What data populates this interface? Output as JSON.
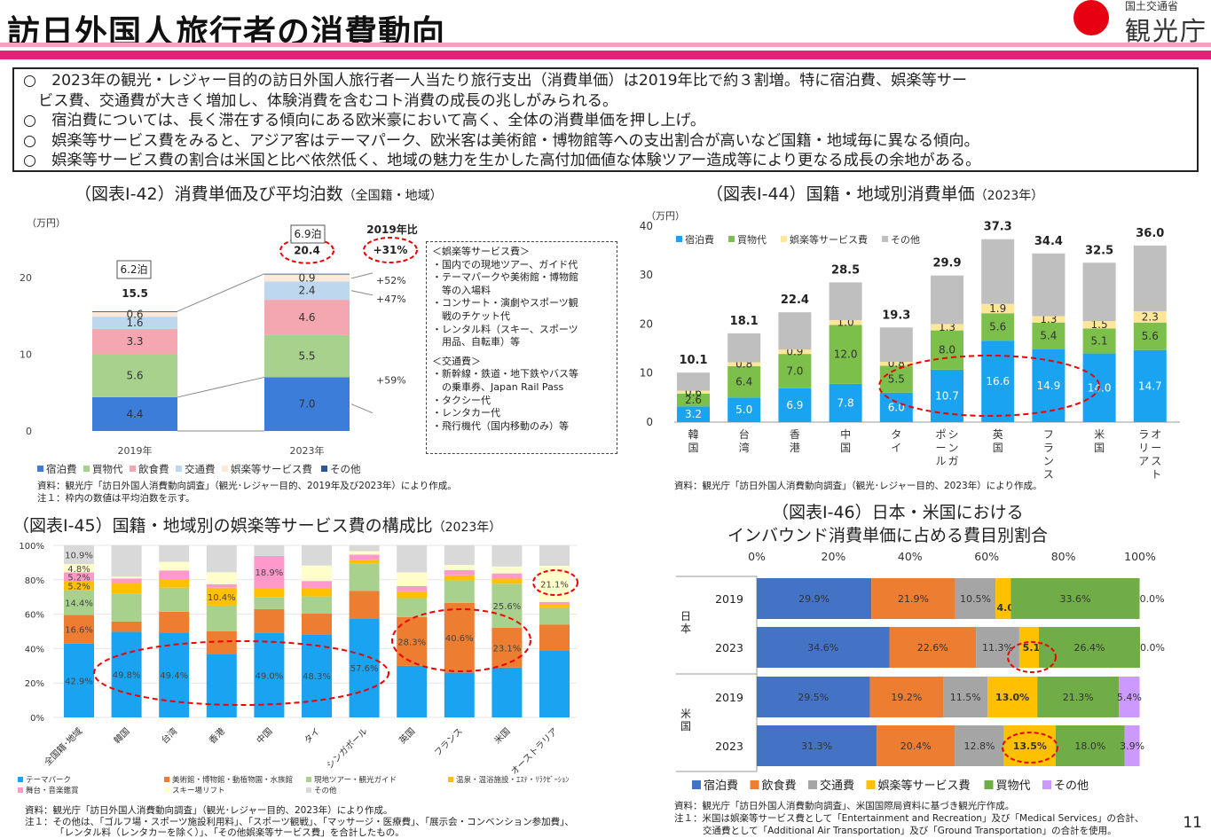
{
  "header": {
    "title": "訪日外国人旅行者の消費動向",
    "ministry": "国土交通省",
    "agency": "観光庁"
  },
  "summary": {
    "line1": "○　2023年の観光・レジャー目的の訪日外国人旅行者一人当たり旅行支出（消費単価）は2019年比で約３割増。特に宿泊費、娯楽等サー",
    "line2": "ビス費、交通費が大きく増加し、体験消費を含むコト消費の成長の兆しがみられる。",
    "line3": "○　宿泊費については、長く滞在する傾向にある欧米豪において高く、全体の消費単価を押し上げ。",
    "line4": "○　娯楽等サービス費をみると、アジア客はテーマパーク、欧米客は美術館・博物館等への支出割合が高いなど国籍・地域毎に異なる傾向。",
    "line5": "○　娯楽等サービス費の割合は米国と比べ依然低く、地域の魅力を生かした高付加価値な体験ツアー造成等により更なる成長の余地がある。"
  },
  "chart42": {
    "title": "（図表Ⅰ-42）消費単価及び平均泊数",
    "title_small": "（全国籍・地域）",
    "unit": "（万円）",
    "stay2019": "6.2泊",
    "stay2023": "6.9泊",
    "compare_label": "2019年比",
    "box_title1": "＜娯楽等サービス費＞",
    "box_l1": "・国内での現地ツアー、ガイド代",
    "box_l2": "・テーマパークや美術館・博物館",
    "box_l3": "　等の入場料",
    "box_l4": "・コンサート・演劇やスポーツ観",
    "box_l5": "　戦のチケット代",
    "box_l6": "・レンタル料（スキー、スポーツ",
    "box_l7": "　用品、自転車）等",
    "box_title2": "＜交通費＞",
    "box_l8": "・新幹線・鉄道・地下鉄やバス等",
    "box_l9": "　の乗車券、Japan Rail Pass",
    "box_l10": "・タクシー代",
    "box_l11": "・レンタカー代",
    "box_l12": "・飛行機代（国内移動のみ）等",
    "note1": "資料：観光庁「訪日外国人消費動向調査」（観光･レジャー目的、2019年及び2023年）により作成。",
    "note2": "注１：枠内の数値は平均泊数を示す。"
  },
  "chart44": {
    "title": "（図表Ⅰ-44）国籍・地域別消費単価",
    "title_small": "（2023年）",
    "unit": "（万円）",
    "note1": "資料：観光庁「訪日外国人消費動向調査」（観光･レジャー目的、2023年）により作成。"
  },
  "chart45": {
    "title": "（図表Ⅰ-45）国籍・地域別の娯楽等サービス費の構成比",
    "title_small": "（2023年）",
    "note1": "資料：観光庁「訪日外国人消費動向調査」（観光･レジャー目的、2023年）により作成。",
    "note2": "注１：その他は、「ゴルフ場・スポーツ施設利用料」、「スポーツ観戦」、「マッサージ・医療費」、「展示会・コンベンション参加費」、",
    "note3": "「レンタル料（レンタカーを除く）」、「その他娯楽等サービス費」を合計したもの。"
  },
  "chart46": {
    "title1": "（図表Ⅰ-46）日本・米国における",
    "title2": "インバウンド消費単価に占める費目別割合",
    "note1": "資料：観光庁「訪日外国人消費動向調査」、米国国際局資料に基づき観光庁作成。",
    "note2": "注１：米国は娯楽等サービス費として「Entertainment and Recreation」及び「Medical Services」の合計、",
    "note3": "交通費として「Additional Air Transportation」及び「Ground Transportation」の合計を使用。"
  },
  "page_number": "11",
  "chart_data": [
    {
      "type": "bar",
      "stacked": true,
      "id": "fig42",
      "categories": [
        "2019年",
        "2023年"
      ],
      "yticks": [
        "0",
        "10",
        "20"
      ],
      "ylim": [
        0,
        24
      ],
      "series": [
        {
          "name": "宿泊費",
          "color": "#3b7dd8",
          "values": [
            4.4,
            7.0
          ]
        },
        {
          "name": "買物代",
          "color": "#a9d18e",
          "values": [
            5.6,
            5.5
          ]
        },
        {
          "name": "飲食費",
          "color": "#f4a7b0",
          "values": [
            3.3,
            4.6
          ]
        },
        {
          "name": "交通費",
          "color": "#bdd7ee",
          "values": [
            1.6,
            2.4
          ]
        },
        {
          "name": "娯楽等サービス費",
          "color": "#fde9d9",
          "values": [
            0.6,
            0.9
          ]
        },
        {
          "name": "その他",
          "color": "#2e5597",
          "values": [
            0.1,
            0.1
          ]
        }
      ],
      "labels": [
        [
          "4.4",
          "5.6",
          "3.3",
          "1.6",
          "0.6",
          ""
        ],
        [
          "7.0",
          "5.5",
          "4.6",
          "2.4",
          "0.9",
          ""
        ]
      ],
      "totals": [
        "15.5",
        "20.4"
      ],
      "growth": [
        "+59%",
        "+47%",
        "+52%",
        "+31%"
      ]
    },
    {
      "type": "bar",
      "stacked": true,
      "id": "fig44",
      "categories": [
        "韓国",
        "台湾",
        "香港",
        "中国",
        "タイ",
        "シンガポール",
        "英国",
        "フランス",
        "米国",
        "オーストラリア"
      ],
      "yticks": [
        "0",
        "10",
        "20",
        "30",
        "40"
      ],
      "ylim": [
        0,
        40
      ],
      "series": [
        {
          "name": "宿泊費",
          "color": "#1aa3f0",
          "values": [
            3.2,
            5.0,
            6.9,
            7.8,
            6.0,
            10.7,
            16.6,
            14.9,
            14.0,
            14.7
          ]
        },
        {
          "name": "買物代",
          "color": "#7cc04b",
          "values": [
            2.6,
            6.4,
            7.0,
            12.0,
            5.5,
            8.0,
            5.6,
            5.4,
            5.1,
            5.6
          ]
        },
        {
          "name": "娯楽等サービス費",
          "color": "#ffe699",
          "values": [
            0.6,
            0.8,
            0.9,
            1.0,
            0.8,
            1.3,
            1.9,
            1.3,
            1.5,
            2.3
          ]
        },
        {
          "name": "その他",
          "color": "#bfbfbf",
          "values": [
            3.7,
            5.9,
            7.6,
            7.7,
            7.0,
            9.9,
            13.2,
            12.8,
            11.9,
            13.4
          ]
        }
      ],
      "labels": [
        [
          "3.2",
          "5.0",
          "6.9",
          "7.8",
          "6.0",
          "10.7",
          "16.6",
          "14.9",
          "14.0",
          "14.7"
        ],
        [
          "2.6",
          "6.4",
          "7.0",
          "12.0",
          "5.5",
          "8.0",
          "5.6",
          "5.4",
          "5.1",
          "5.6"
        ],
        [
          "0.6",
          "0.8",
          "0.9",
          "1.0",
          "0.8",
          "1.3",
          "1.9",
          "1.3",
          "1.5",
          "2.3"
        ]
      ],
      "totals": [
        "10.1",
        "18.1",
        "22.4",
        "28.5",
        "19.3",
        "29.9",
        "37.3",
        "34.4",
        "32.5",
        "36.0"
      ]
    },
    {
      "type": "bar",
      "stacked": true,
      "percent": true,
      "id": "fig45",
      "categories": [
        "全国籍･地域",
        "韓国",
        "台湾",
        "香港",
        "中国",
        "タイ",
        "シンガポール",
        "英国",
        "フランス",
        "米国",
        "オーストラリア"
      ],
      "yticks": [
        "0%",
        "20%",
        "40%",
        "60%",
        "80%",
        "100%"
      ],
      "series": [
        {
          "name": "テーマパーク",
          "color": "#1aa3f0",
          "values": [
            42.9,
            49.8,
            49.4,
            37.0,
            49.0,
            48.3,
            57.6,
            30.0,
            26.0,
            29.0,
            39.0
          ]
        },
        {
          "name": "美術館・博物館・動植物園・水族館",
          "color": "#ed7d31",
          "values": [
            16.6,
            6.0,
            12.0,
            13.0,
            14.0,
            12.0,
            16.0,
            28.3,
            40.6,
            23.1,
            15.0
          ]
        },
        {
          "name": "現地ツアー・観光ガイド",
          "color": "#a9d18e",
          "values": [
            14.4,
            16.0,
            14.0,
            15.0,
            7.0,
            10.0,
            16.0,
            11.0,
            13.0,
            25.6,
            10.0
          ]
        },
        {
          "name": "温泉・温浴施設・ｴｽﾃ・ﾘﾗｸｾﾞｰｼｮﾝ",
          "color": "#ffc000",
          "values": [
            5.2,
            6.0,
            5.0,
            10.4,
            5.0,
            5.0,
            2.0,
            4.0,
            3.0,
            3.0,
            2.0
          ]
        },
        {
          "name": "舞台・音楽鑑賞",
          "color": "#ff99cc",
          "values": [
            5.2,
            3.0,
            5.0,
            2.0,
            18.9,
            4.0,
            3.0,
            3.0,
            3.0,
            3.0,
            1.0
          ]
        },
        {
          "name": "スキー場リフト",
          "color": "#ffffcc",
          "values": [
            4.8,
            1.0,
            5.0,
            7.0,
            0.0,
            9.0,
            2.0,
            8.0,
            3.0,
            4.0,
            21.1
          ]
        },
        {
          "name": "その他",
          "color": "#d9d9d9",
          "values": [
            10.9,
            18.2,
            9.6,
            15.6,
            6.1,
            11.7,
            3.4,
            15.7,
            11.4,
            12.3,
            11.9
          ]
        }
      ],
      "labels": [
        [
          "42.9%",
          "49.8%",
          "49.4%",
          "",
          "49.0%",
          "48.3%",
          "57.6%",
          "",
          "",
          "",
          ""
        ],
        [
          "16.6%",
          "",
          "",
          "",
          "",
          "",
          "",
          "28.3%",
          "40.6%",
          "23.1%",
          ""
        ],
        [
          "14.4%",
          "",
          "",
          "",
          "",
          "",
          "",
          "",
          "",
          "25.6%",
          ""
        ],
        [
          "5.2%",
          "",
          "",
          "10.4%",
          "",
          "",
          "",
          "",
          "",
          "",
          ""
        ],
        [
          "5.2%",
          "",
          "",
          "",
          "18.9%",
          "",
          "",
          "",
          "",
          "",
          ""
        ],
        [
          "4.8%",
          "",
          "",
          "",
          "",
          "",
          "",
          "",
          "",
          "",
          "21.1%"
        ],
        [
          "10.9%",
          "",
          "",
          "",
          "",
          "",
          "",
          "",
          "",
          "",
          ""
        ]
      ]
    },
    {
      "type": "bar",
      "stacked": true,
      "horizontal": true,
      "percent": true,
      "id": "fig46",
      "groups": [
        "日本",
        "米国"
      ],
      "categories": [
        "2019",
        "2023",
        "2019",
        "2023"
      ],
      "xticks": [
        "0%",
        "20%",
        "40%",
        "60%",
        "80%",
        "100%"
      ],
      "series": [
        {
          "name": "宿泊費",
          "color": "#4472c4",
          "values": [
            29.9,
            34.6,
            29.5,
            31.3
          ]
        },
        {
          "name": "飲食費",
          "color": "#ed7d31",
          "values": [
            21.9,
            22.6,
            19.2,
            20.4
          ]
        },
        {
          "name": "交通費",
          "color": "#a5a5a5",
          "values": [
            10.5,
            11.3,
            11.5,
            12.8
          ]
        },
        {
          "name": "娯楽等サービス費",
          "color": "#ffc000",
          "values": [
            4.0,
            5.1,
            13.0,
            13.5
          ]
        },
        {
          "name": "買物代",
          "color": "#70ad47",
          "values": [
            33.6,
            26.4,
            21.3,
            18.0
          ]
        },
        {
          "name": "その他",
          "color": "#cc99ff",
          "values": [
            0.0,
            0.0,
            5.4,
            3.9
          ]
        }
      ],
      "labels": [
        [
          "29.9%",
          "34.6%",
          "29.5%",
          "31.3%"
        ],
        [
          "21.9%",
          "22.6%",
          "19.2%",
          "20.4%"
        ],
        [
          "10.5%",
          "11.3%",
          "11.5%",
          "12.8%"
        ],
        [
          "4.0%",
          "5.1%",
          "13.0%",
          "13.5%"
        ],
        [
          "33.6%",
          "26.4%",
          "21.3%",
          "18.0%"
        ],
        [
          "0.0%",
          "0.0%",
          "5.4%",
          "3.9%"
        ]
      ]
    }
  ]
}
